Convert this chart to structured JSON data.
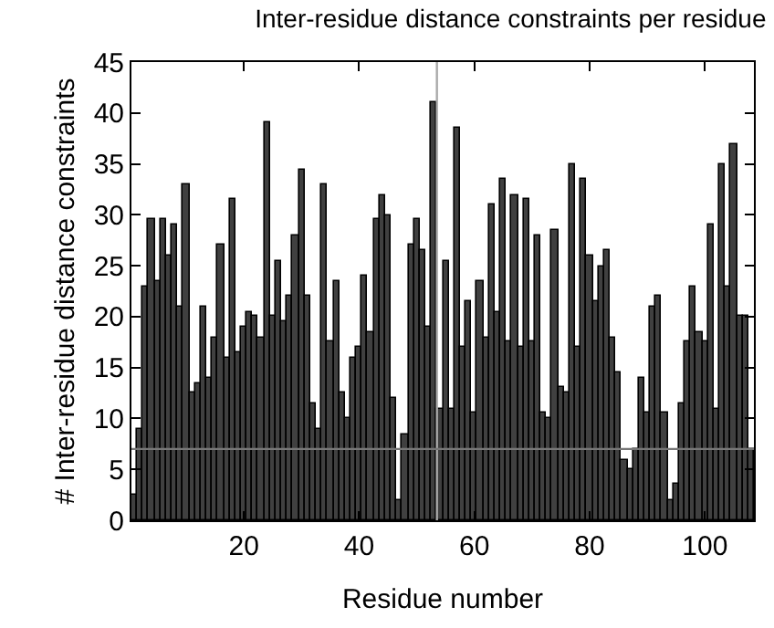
{
  "chart_data": {
    "type": "bar",
    "title": "Inter-residue distance constraints per residue",
    "xlabel": "Residue number",
    "ylabel": "# Inter-residue distance constraints",
    "x": [
      1,
      2,
      3,
      4,
      5,
      6,
      7,
      8,
      9,
      10,
      11,
      12,
      13,
      14,
      15,
      16,
      17,
      18,
      19,
      20,
      21,
      22,
      23,
      24,
      25,
      26,
      27,
      28,
      29,
      30,
      31,
      32,
      33,
      34,
      35,
      36,
      37,
      38,
      39,
      40,
      41,
      42,
      43,
      44,
      45,
      46,
      47,
      48,
      49,
      50,
      51,
      52,
      53,
      54,
      55,
      56,
      57,
      58,
      59,
      60,
      61,
      62,
      63,
      64,
      65,
      66,
      67,
      68,
      69,
      70,
      71,
      72,
      73,
      74,
      75,
      76,
      77,
      78,
      79,
      80,
      81,
      82,
      83,
      84,
      85,
      86,
      87,
      88,
      89,
      90,
      91,
      92,
      93,
      94,
      95,
      96,
      97,
      98,
      99,
      100,
      101,
      102,
      103,
      104,
      105,
      106,
      107,
      108
    ],
    "values": [
      2.5,
      9,
      23,
      29.5,
      23.5,
      29.5,
      26,
      29,
      21,
      33,
      12.5,
      13.5,
      21,
      14,
      18,
      27,
      16,
      31.5,
      16.5,
      19,
      20.5,
      20,
      18,
      39,
      20,
      25.5,
      19.5,
      22,
      28,
      34.5,
      22,
      11.5,
      9,
      33,
      17.5,
      23.5,
      12.5,
      10,
      16,
      17,
      24,
      18.5,
      29.5,
      32,
      30,
      12,
      2,
      8.5,
      27,
      29.5,
      26.5,
      19,
      41,
      11,
      25.5,
      11,
      38.5,
      17,
      21.5,
      10.5,
      23.5,
      18,
      31,
      20.5,
      33.5,
      17.5,
      32,
      17,
      31.5,
      17.5,
      28,
      10.5,
      10,
      28.5,
      13,
      12.5,
      35,
      17,
      33.5,
      26,
      21.5,
      25,
      26.5,
      18,
      14.5,
      6,
      5,
      7,
      14,
      10.5,
      21,
      22,
      10.5,
      2,
      3.5,
      11.5,
      17.5,
      23,
      18.5,
      17.5,
      29,
      11,
      35,
      23,
      37,
      20,
      20,
      7
    ],
    "color": "#404040",
    "xlim": [
      0.5,
      108.5
    ],
    "xticks": [
      20,
      40,
      60,
      80,
      100
    ],
    "ylim": [
      0,
      45
    ],
    "yticks": [
      0,
      5,
      10,
      15,
      20,
      25,
      30,
      35,
      40,
      45
    ],
    "ref_lines": [
      {
        "axis": "x",
        "value": 53.5,
        "color": "#aaaaaa"
      },
      {
        "axis": "y",
        "value": 7,
        "color": "#777777"
      }
    ]
  }
}
